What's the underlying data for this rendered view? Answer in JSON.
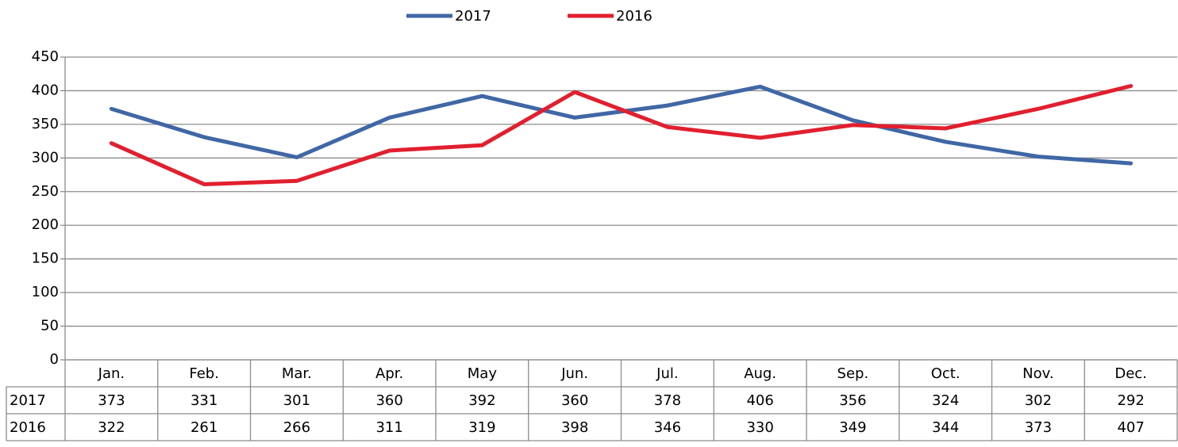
{
  "chart_data": {
    "type": "line",
    "categories": [
      "Jan.",
      "Feb.",
      "Mar.",
      "Apr.",
      "May",
      "Jun.",
      "Jul.",
      "Aug.",
      "Sep.",
      "Oct.",
      "Nov.",
      "Dec."
    ],
    "series": [
      {
        "name": "2017",
        "color": "#4067a5",
        "values": [
          373,
          331,
          301,
          360,
          392,
          360,
          378,
          406,
          356,
          324,
          302,
          292
        ]
      },
      {
        "name": "2016",
        "color": "#e11f2e",
        "values": [
          322,
          261,
          266,
          311,
          319,
          398,
          346,
          330,
          349,
          344,
          373,
          407
        ]
      }
    ],
    "ylim": [
      0,
      450
    ],
    "yticks": [
      0,
      50,
      100,
      150,
      200,
      250,
      300,
      350,
      400,
      450
    ],
    "grid": true,
    "legend": "top",
    "data_table": true
  }
}
